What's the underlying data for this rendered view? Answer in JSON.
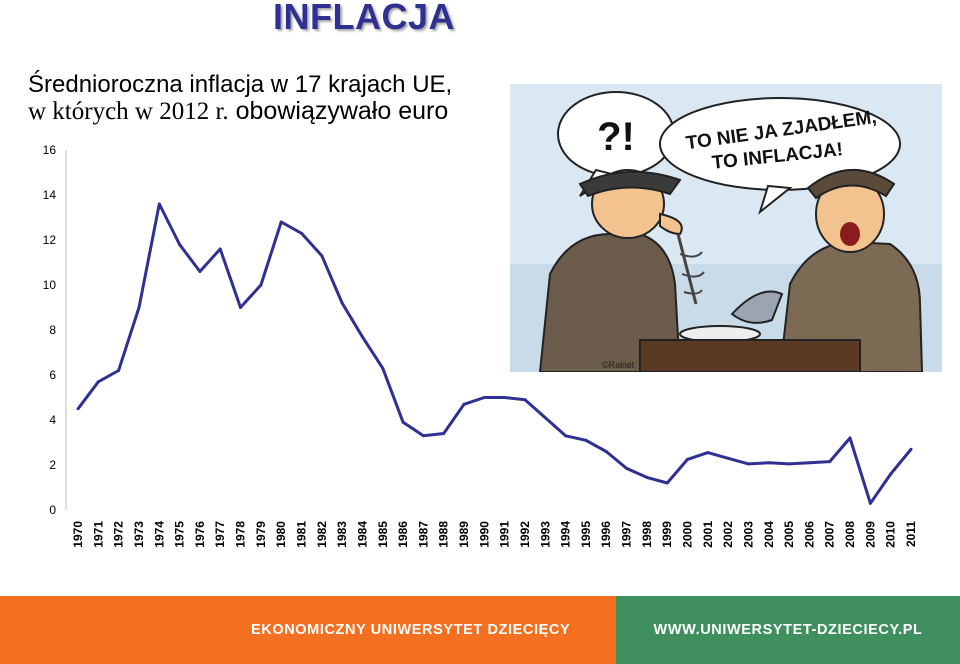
{
  "page": {
    "title": "INFLACJA",
    "subtitle_line1": "Średnioroczna inflacja w 17 krajach UE,",
    "subtitle_line2_a": "w których w 2012 r.",
    "subtitle_line2_b": " obowiązywało euro"
  },
  "cartoon": {
    "bubble_left": "?!",
    "bubble_right_line1": "TO NIE JA ZJADŁEM,",
    "bubble_right_line2": "TO INFLACJA!",
    "signature": "©Rakiet"
  },
  "footer": {
    "left_text": "EKONOMICZNY UNIWERSYTET DZIECIĘCY",
    "right_text": "WWW.UNIWERSYTET-DZIECIECY.PL"
  },
  "colors": {
    "title": "#2e3192",
    "line": "#2e3192",
    "footer_left": "#f37021",
    "footer_right": "#3f8f5f"
  },
  "chart_data": {
    "type": "line",
    "title": "",
    "xlabel": "",
    "ylabel": "",
    "ylim": [
      0,
      16
    ],
    "yticks": [
      0,
      2,
      4,
      6,
      8,
      10,
      12,
      14,
      16
    ],
    "grid": false,
    "x": [
      "1970",
      "1971",
      "1972",
      "1973",
      "1974",
      "1975",
      "1976",
      "1977",
      "1978",
      "1979",
      "1980",
      "1981",
      "1982",
      "1983",
      "1984",
      "1985",
      "1986",
      "1987",
      "1988",
      "1989",
      "1990",
      "1991",
      "1992",
      "1993",
      "1994",
      "1995",
      "1996",
      "1997",
      "1998",
      "1999",
      "2000",
      "2001",
      "2002",
      "2003",
      "2004",
      "2005",
      "2006",
      "2007",
      "2008",
      "2009",
      "2010",
      "2011"
    ],
    "series": [
      {
        "values": [
          4.5,
          5.7,
          6.2,
          9.0,
          13.6,
          11.8,
          10.6,
          11.6,
          9.0,
          10.0,
          12.8,
          12.3,
          11.3,
          9.2,
          7.7,
          6.3,
          3.9,
          3.3,
          3.4,
          4.7,
          5.0,
          5.0,
          4.9,
          4.1,
          3.3,
          3.1,
          2.6,
          1.85,
          1.45,
          1.2,
          2.25,
          2.55,
          2.3,
          2.05,
          2.1,
          2.05,
          2.1,
          2.15,
          3.2,
          0.3,
          1.6,
          2.7
        ]
      }
    ]
  }
}
